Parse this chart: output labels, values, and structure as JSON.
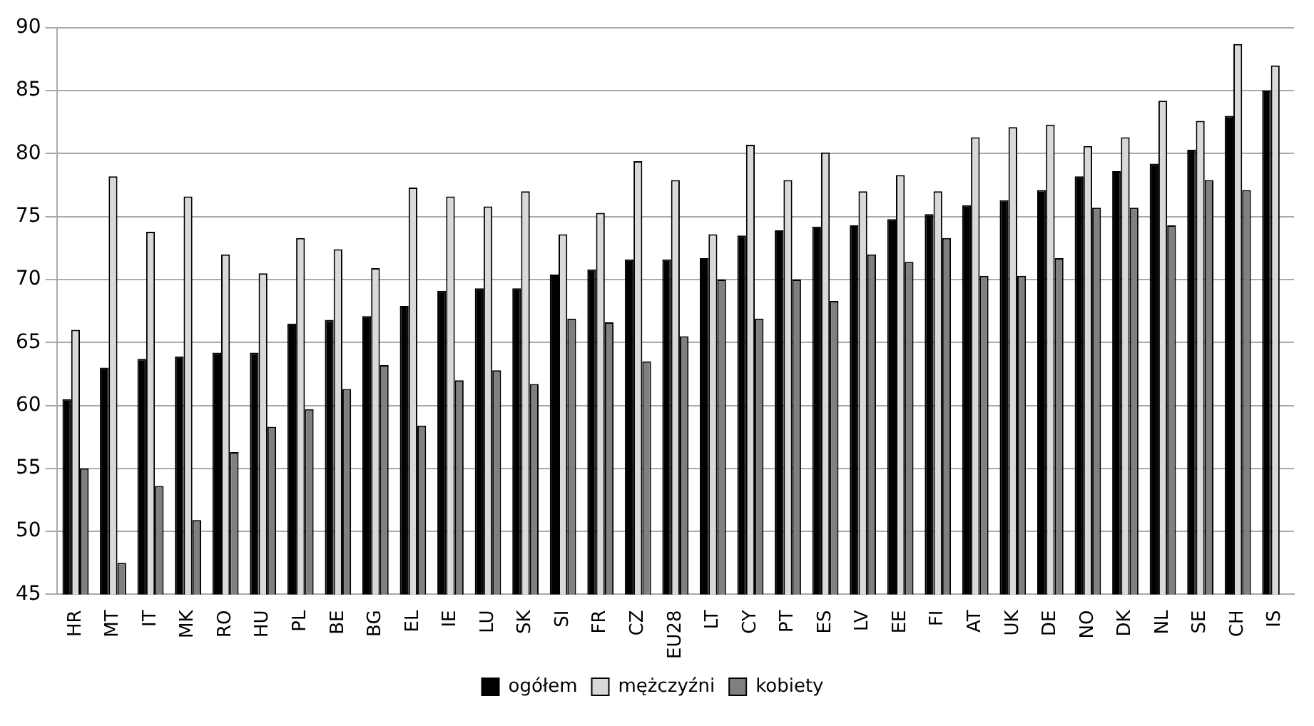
{
  "chart_data": {
    "type": "bar",
    "categories": [
      "HR",
      "MT",
      "IT",
      "MK",
      "RO",
      "HU",
      "PL",
      "BE",
      "BG",
      "EL",
      "IE",
      "LU",
      "SK",
      "SI",
      "FR",
      "CZ",
      "EU28",
      "LT",
      "CY",
      "PT",
      "ES",
      "LV",
      "EE",
      "FI",
      "AT",
      "UK",
      "DE",
      "NO",
      "DK",
      "NL",
      "SE",
      "CH",
      "IS"
    ],
    "series": [
      {
        "name": "ogółem",
        "color": "#000000",
        "values": [
          60.5,
          63,
          63.7,
          63.9,
          64.2,
          64.2,
          66.5,
          66.8,
          67.1,
          67.9,
          69.1,
          69.3,
          69.3,
          70.4,
          70.8,
          71.6,
          71.6,
          71.7,
          73.5,
          73.9,
          74.2,
          74.3,
          74.8,
          75.2,
          75.9,
          76.3,
          77.1,
          78.2,
          78.6,
          79.2,
          80.3,
          83,
          85
        ]
      },
      {
        "name": "mężczyźni",
        "color": "#d9d9d9",
        "values": [
          66,
          78.2,
          73.8,
          76.6,
          72,
          70.5,
          73.3,
          72.4,
          70.9,
          77.3,
          76.6,
          75.8,
          77,
          73.6,
          75.3,
          79.4,
          77.9,
          73.6,
          80.7,
          77.9,
          80.1,
          77,
          78.3,
          77,
          81.3,
          82.1,
          82.3,
          80.6,
          81.3,
          84.2,
          82.6,
          88.7,
          87
        ]
      },
      {
        "name": "kobiety",
        "color": "#808080",
        "values": [
          55,
          47.5,
          53.6,
          50.9,
          56.3,
          58.3,
          59.7,
          61.3,
          63.2,
          58.4,
          62,
          62.8,
          61.7,
          66.9,
          66.6,
          63.5,
          65.5,
          70,
          66.9,
          70,
          68.3,
          72,
          71.4,
          73.3,
          70.3,
          70.3,
          71.7,
          75.7,
          75.7,
          74.3,
          77.9,
          77.1,
          null
        ]
      }
    ],
    "ylim": [
      45,
      90
    ],
    "yticks": [
      45,
      50,
      55,
      60,
      65,
      70,
      75,
      80,
      85,
      90
    ],
    "grid": "y",
    "legend": "bottom"
  }
}
